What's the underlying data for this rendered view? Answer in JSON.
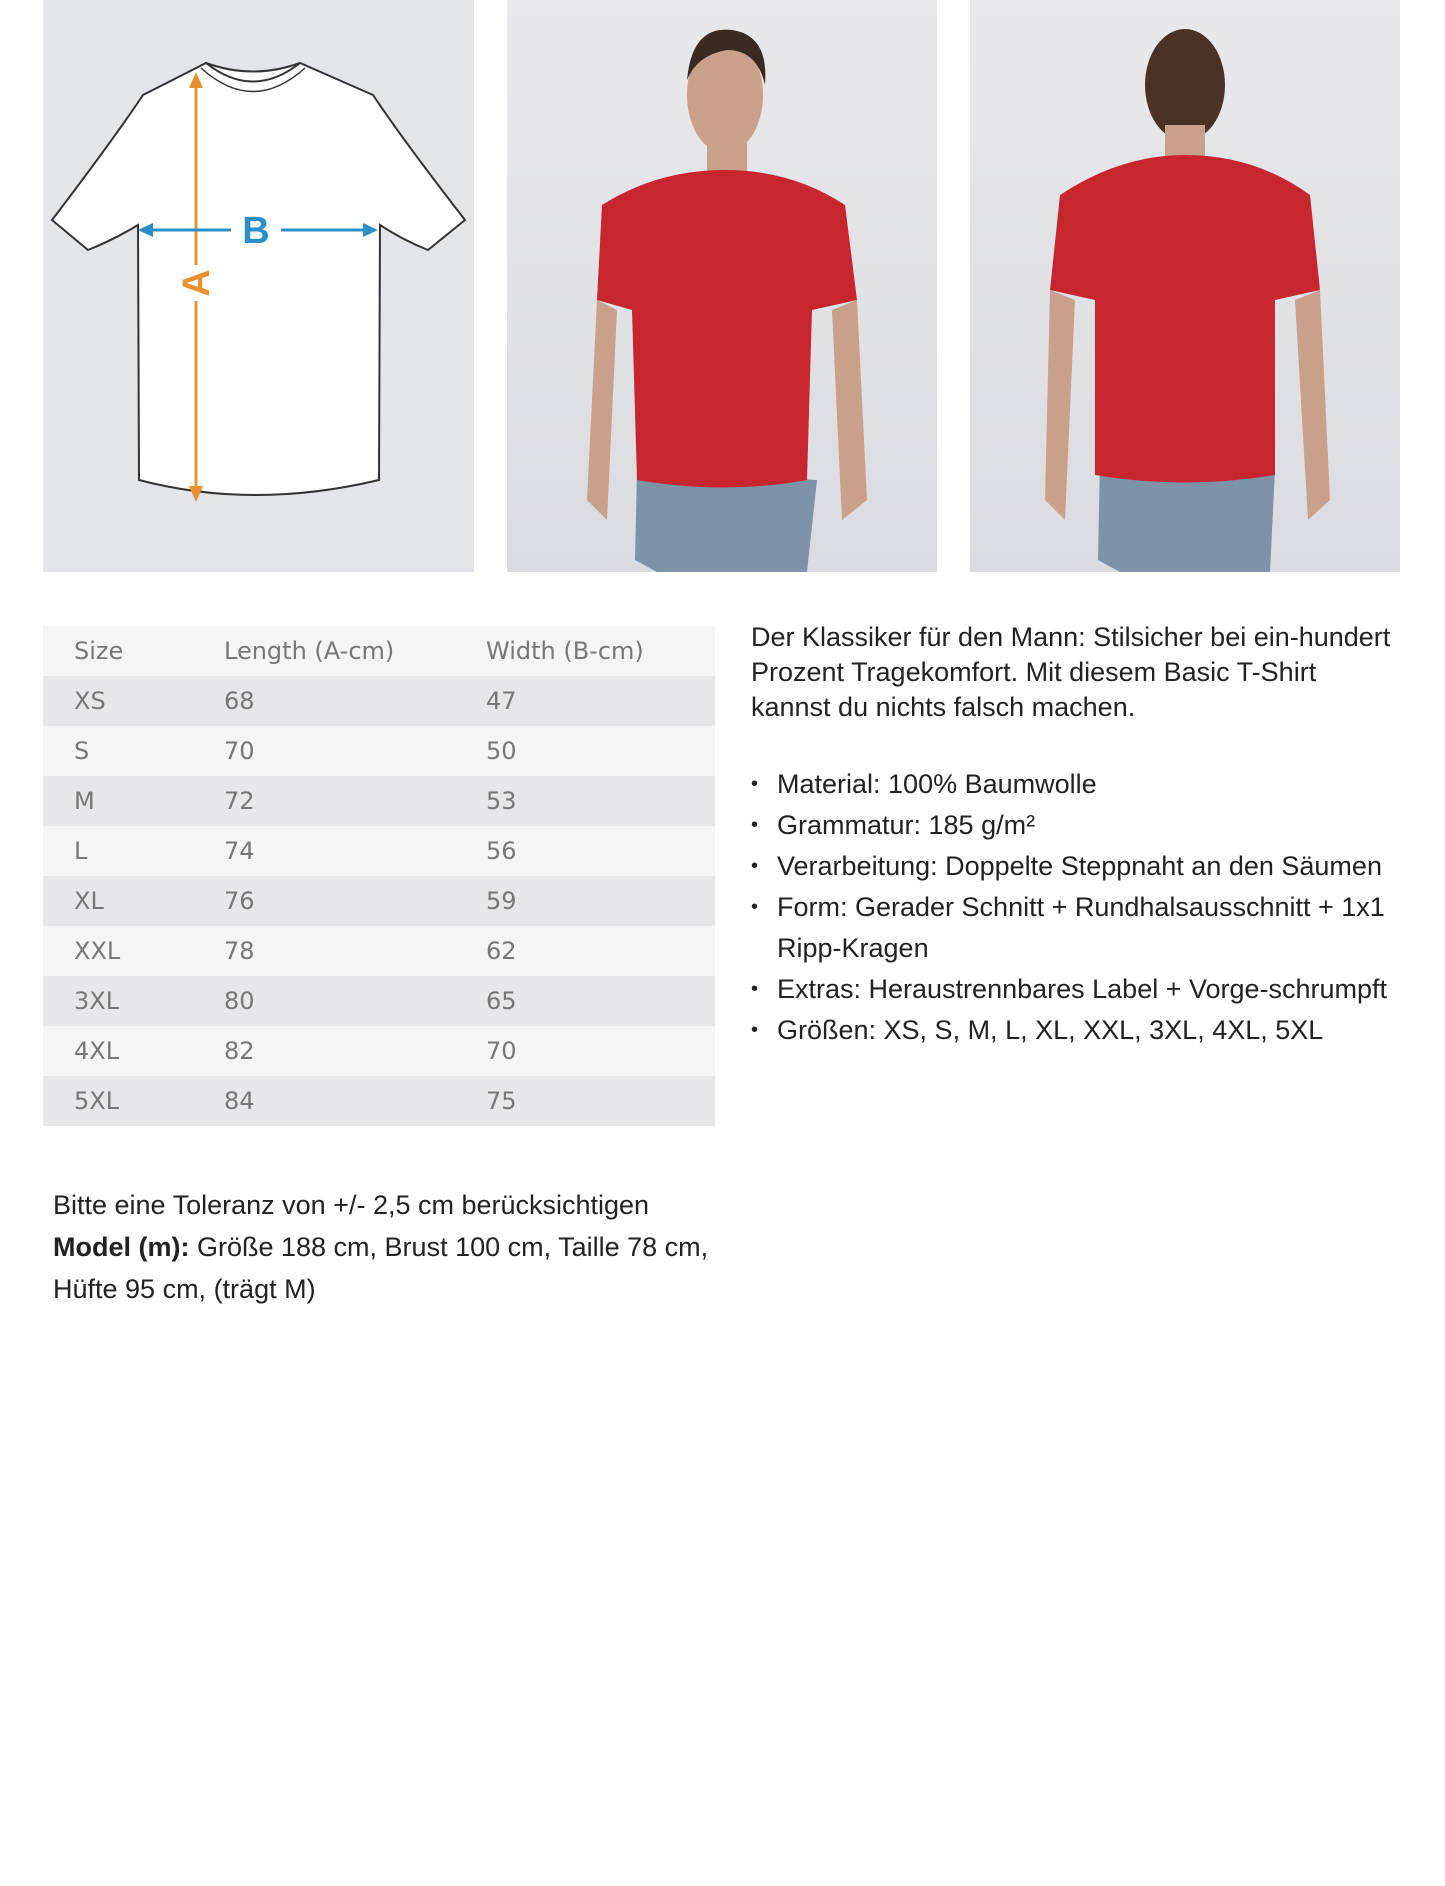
{
  "diagram": {
    "label_a": "A",
    "label_b": "B",
    "color_a": "#e8912e",
    "color_b": "#2a8fc8"
  },
  "photos": {
    "shirt_color": "#c8262f",
    "jeans_color": "#7e93a8"
  },
  "size_table": {
    "headers": [
      "Size",
      "Length (A-cm)",
      "Width (B-cm)"
    ],
    "rows": [
      [
        "XS",
        "68",
        "47"
      ],
      [
        "S",
        "70",
        "50"
      ],
      [
        "M",
        "72",
        "53"
      ],
      [
        "L",
        "74",
        "56"
      ],
      [
        "XL",
        "76",
        "59"
      ],
      [
        "XXL",
        "78",
        "62"
      ],
      [
        "3XL",
        "80",
        "65"
      ],
      [
        "4XL",
        "82",
        "70"
      ],
      [
        "5XL",
        "84",
        "75"
      ]
    ]
  },
  "description": "Der Klassiker für den Mann: Stilsicher bei ein-hundert Prozent Tragekomfort. Mit diesem Basic T-Shirt kannst du nichts falsch machen.",
  "features": [
    "Material: 100% Baumwolle",
    "Grammatur: 185 g/m²",
    "Verarbeitung: Doppelte Steppnaht an den Säumen",
    "Form: Gerader Schnitt + Rundhalsausschnitt + 1x1 Ripp-Kragen",
    "Extras: Heraustrennbares Label + Vorge-schrumpft",
    "Größen: XS, S, M, L, XL, XXL, 3XL, 4XL, 5XL"
  ],
  "notes": {
    "tolerance": "Bitte eine Toleranz von +/- 2,5 cm berücksichtigen",
    "model_label": "Model (m):",
    "model_text": " Größe 188 cm, Brust 100 cm, Taille 78 cm, Hüfte 95 cm, (trägt M)"
  }
}
